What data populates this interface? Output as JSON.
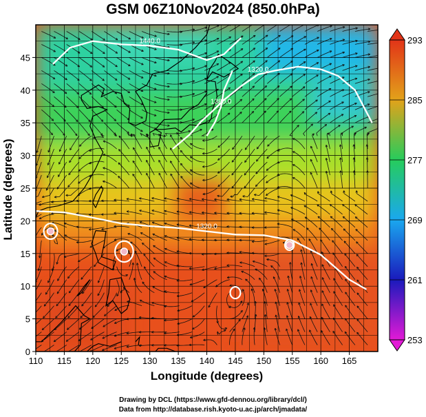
{
  "chart_data": {
    "type": "heatmap",
    "title": "GSM 06Z10Nov2024 (850.0hPa)",
    "xlabel": "Longitude (degrees)",
    "ylabel": "Latitude (degrees)",
    "xlim": [
      110,
      170
    ],
    "ylim": [
      0,
      50
    ],
    "x_ticks": [
      110,
      115,
      120,
      125,
      130,
      135,
      140,
      145,
      150,
      155,
      160,
      165
    ],
    "y_ticks": [
      0,
      5,
      10,
      15,
      20,
      25,
      30,
      35,
      40,
      45
    ],
    "grid": true,
    "colorbar": {
      "ticks": [
        253,
        261,
        269,
        277,
        285,
        293
      ],
      "range": [
        253,
        293
      ],
      "colors": [
        "#e21ad6",
        "#1a1abc",
        "#1aa8ef",
        "#26cc5c",
        "#e2a21a",
        "#e23418"
      ]
    },
    "contours": [
      {
        "label": "1320.0",
        "points": [
          [
            110,
            21.5
          ],
          [
            115,
            21.3
          ],
          [
            120,
            20.5
          ],
          [
            125,
            19.6
          ],
          [
            130,
            19.2
          ],
          [
            135,
            18.9
          ],
          [
            140,
            18.4
          ],
          [
            145,
            17.9
          ],
          [
            150,
            17.8
          ],
          [
            155,
            17.0
          ],
          [
            160,
            14.8
          ],
          [
            165,
            11.0
          ],
          [
            168,
            9.5
          ]
        ]
      },
      {
        "label": "1320.0",
        "points": [
          [
            134,
            31.0
          ],
          [
            137,
            33.2
          ],
          [
            139,
            35.2
          ],
          [
            141,
            36.8
          ],
          [
            143,
            38.5
          ],
          [
            146,
            40.6
          ],
          [
            149,
            42.4
          ],
          [
            152,
            43.0
          ],
          [
            156,
            43.6
          ],
          [
            160,
            43.2
          ],
          [
            163,
            42.2
          ],
          [
            166,
            40.0
          ],
          [
            169,
            35.0
          ]
        ]
      },
      {
        "label": "1440.0",
        "points": [
          [
            113,
            44.0
          ],
          [
            116,
            46.5
          ],
          [
            120,
            47.5
          ],
          [
            125,
            47.0
          ],
          [
            130,
            46.8
          ],
          [
            135,
            46.2
          ],
          [
            140,
            44.6
          ],
          [
            143,
            45.5
          ],
          [
            146,
            48.0
          ]
        ]
      },
      {
        "label": "1380.0",
        "points": [
          [
            140,
            33.0
          ],
          [
            141.5,
            35.2
          ],
          [
            142.5,
            37.5
          ],
          [
            143,
            40.0
          ],
          [
            144.5,
            43.0
          ]
        ]
      }
    ],
    "closed_contours": [
      {
        "center": [
          112.6,
          18.4
        ],
        "radius_deg": 1.2
      },
      {
        "center": [
          125.5,
          15.3
        ],
        "radius_deg": 1.6
      },
      {
        "center": [
          145.0,
          9.0
        ],
        "radius_deg": 0.9
      },
      {
        "center": [
          154.5,
          16.3
        ],
        "radius_deg": 0.8
      }
    ],
    "cyclone_centers": [
      [
        112.6,
        18.4
      ],
      [
        125.5,
        15.3
      ],
      [
        154.5,
        16.3
      ]
    ]
  },
  "credits": {
    "line1": "Drawing by DCL (https://www.gfd-dennou.org/library/dcl/)",
    "line2": "Data from http://database.rish.kyoto-u.ac.jp/arch/jmadata/"
  }
}
